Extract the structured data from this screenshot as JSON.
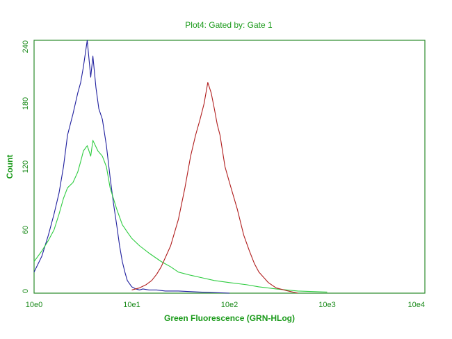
{
  "chart_data": {
    "type": "line",
    "title": "Plot4:  Gated by: Gate 1",
    "xlabel": "Green Fluorescence (GRN-HLog)",
    "ylabel": "Count",
    "x_scale": "log",
    "xlim": [
      1,
      10000
    ],
    "ylim": [
      0,
      240
    ],
    "x_ticks": [
      "10e0",
      "10e1",
      "10e2",
      "10e3",
      "10e4"
    ],
    "y_ticks": [
      "0",
      "60",
      "120",
      "180",
      "240"
    ],
    "grid": false,
    "legend": "none",
    "series": [
      {
        "color": "#1f1f9e",
        "x": [
          1.0,
          1.2,
          1.4,
          1.6,
          1.8,
          2.0,
          2.2,
          2.5,
          2.8,
          3.0,
          3.2,
          3.5,
          3.8,
          4.0,
          4.3,
          4.6,
          5.0,
          5.5,
          6.0,
          6.5,
          7.0,
          7.5,
          8.0,
          8.5,
          9.0,
          10.0,
          11.0,
          12.0,
          13.0,
          15.0,
          18.0,
          22.0,
          30.0,
          50.0,
          100.0
        ],
        "y": [
          20,
          35,
          55,
          75,
          95,
          120,
          150,
          170,
          190,
          200,
          215,
          240,
          205,
          225,
          195,
          175,
          165,
          140,
          110,
          85,
          65,
          45,
          30,
          20,
          12,
          6,
          4,
          3,
          4,
          3,
          3,
          2,
          2,
          1,
          0
        ]
      },
      {
        "color": "#2ecc40",
        "x": [
          1.0,
          1.2,
          1.4,
          1.6,
          1.8,
          2.0,
          2.2,
          2.5,
          2.8,
          3.0,
          3.2,
          3.5,
          3.8,
          4.0,
          4.5,
          5.0,
          5.5,
          6.0,
          7.0,
          8.0,
          9.0,
          10.0,
          12.0,
          15.0,
          20.0,
          25.0,
          30.0,
          40.0,
          50.0,
          70.0,
          100.0,
          150.0,
          200.0,
          300.0,
          500.0,
          1000.0
        ],
        "y": [
          30,
          40,
          50,
          60,
          75,
          90,
          100,
          105,
          115,
          125,
          135,
          140,
          130,
          145,
          135,
          130,
          120,
          100,
          80,
          65,
          58,
          52,
          45,
          38,
          30,
          25,
          20,
          17,
          15,
          12,
          10,
          8,
          6,
          4,
          2,
          1
        ]
      },
      {
        "color": "#b01c1c",
        "x": [
          10.0,
          12.0,
          14.0,
          16.0,
          18.0,
          20.0,
          25.0,
          30.0,
          35.0,
          40.0,
          45.0,
          50.0,
          55.0,
          60.0,
          65.0,
          70.0,
          75.0,
          80.0,
          90.0,
          100.0,
          120.0,
          140.0,
          160.0,
          180.0,
          200.0,
          250.0,
          300.0,
          400.0,
          500.0
        ],
        "y": [
          3,
          5,
          8,
          12,
          18,
          25,
          45,
          70,
          100,
          130,
          150,
          165,
          180,
          200,
          190,
          175,
          160,
          150,
          120,
          105,
          80,
          55,
          40,
          28,
          20,
          10,
          5,
          2,
          0
        ]
      }
    ]
  }
}
